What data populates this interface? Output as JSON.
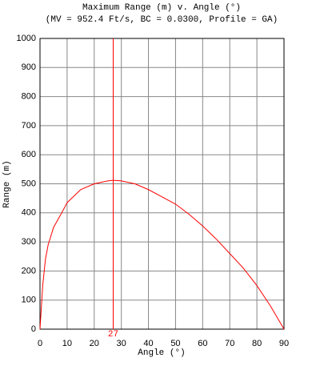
{
  "chart_data": {
    "type": "line",
    "title": "Maximum Range (m) v. Angle (°)",
    "subtitle": "(MV = 952.4 Ft/s, BC = 0.0300, Profile = GA)",
    "x_label": "Angle (°)",
    "y_label": "Range (m)",
    "x": [
      0,
      1,
      2,
      3,
      5,
      8,
      10,
      15,
      20,
      25,
      27,
      30,
      35,
      40,
      45,
      50,
      55,
      60,
      65,
      70,
      75,
      80,
      85,
      90
    ],
    "values": [
      0,
      150,
      240,
      290,
      350,
      400,
      435,
      480,
      500,
      510,
      512,
      510,
      500,
      480,
      455,
      430,
      395,
      355,
      310,
      260,
      210,
      150,
      80,
      0
    ],
    "color": "#ff0000",
    "xlim": [
      0,
      90
    ],
    "ylim": [
      0,
      1000
    ],
    "xticks": [
      0,
      10,
      20,
      30,
      40,
      50,
      60,
      70,
      80,
      90
    ],
    "yticks": [
      0,
      100,
      200,
      300,
      400,
      500,
      600,
      700,
      800,
      900,
      1000
    ],
    "grid": true,
    "vline": 27
  }
}
